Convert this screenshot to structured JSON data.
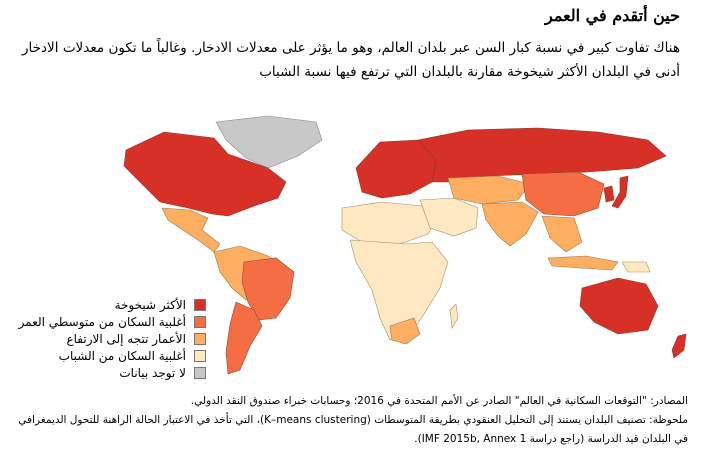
{
  "title": "حين أتقدم في العمر",
  "intro": "هناك تفاوت كبير في نسبة كبار السن عبر بلدان العالم، وهو ما يؤثر على معدلات الادخار. وغالباً ما تكون معدلات الادخار أدنى في البلدان الأكثر شيخوخة مقارنة بالبلدان التي ترتفع فيها نسبة الشباب",
  "legend": [
    {
      "label": "الأكثر شيخوخة",
      "color": "#d73027"
    },
    {
      "label": "أغلبية السكان من متوسطي العمر",
      "color": "#f46d43"
    },
    {
      "label": "الأعمار تتجه إلى الارتفاع",
      "color": "#fdae61"
    },
    {
      "label": "أغلبية السكان من الشباب",
      "color": "#fee8c1"
    },
    {
      "label": "لا توجد بيانات",
      "color": "#c8c8c8"
    }
  ],
  "source": "المصادر: \"التوقعات السكانية في العالم\" الصادر عن الأمم المتحدة في 2016؛ وحسابات خبراء صندوق النقد الدولي.",
  "note": "ملحوظة: تصنيف البلدان يستند إلى التحليل العنقودي بطريقة المتوسطات (K–means clustering)، التي تأخذ في الاعتبار الحالة الراهنة للتحول الديمغرافي في البلدان قيد الدراسة (راجع دراسة IMF 2015b, Annex 1)."
}
